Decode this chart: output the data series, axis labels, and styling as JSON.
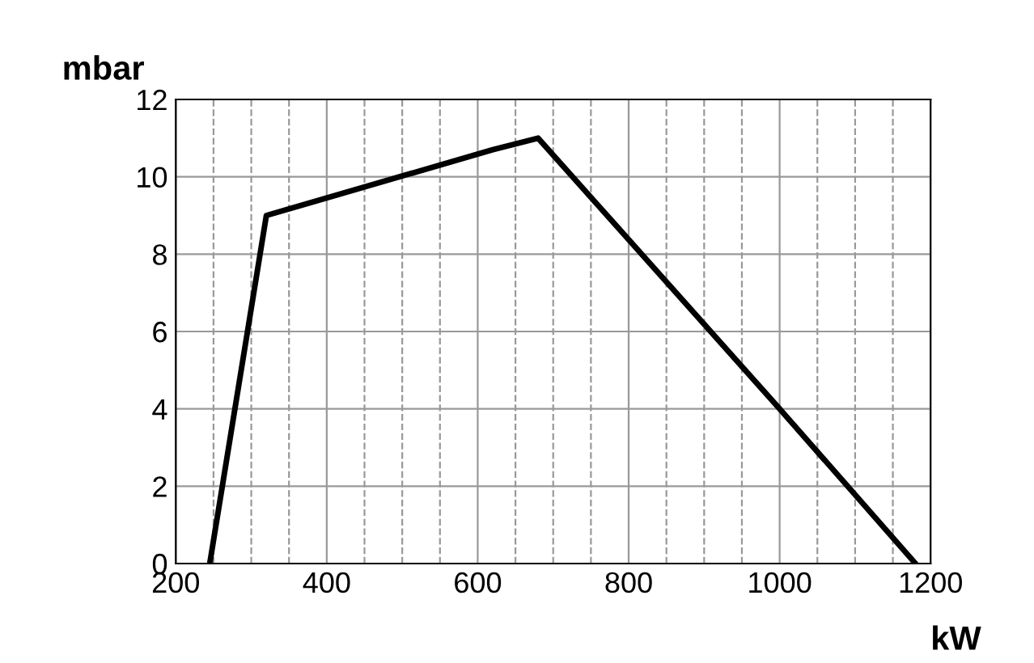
{
  "chart_data": {
    "type": "line",
    "ylabel": "mbar",
    "xlabel": "kW",
    "x": [
      245,
      320,
      620,
      680,
      1000,
      1180
    ],
    "series": [
      {
        "color": "#000000",
        "values": [
          0,
          9,
          10.7,
          11,
          4,
          0
        ]
      }
    ],
    "xlim": [
      200,
      1200
    ],
    "ylim": [
      0,
      12
    ],
    "xticks": [
      200,
      {
        "value": 250,
        "label": null
      },
      {
        "value": 300,
        "label": null
      },
      {
        "value": 350,
        "label": null
      },
      400,
      {
        "value": 450,
        "label": null
      },
      {
        "value": 500,
        "label": null
      },
      {
        "value": 550,
        "label": null
      },
      600,
      {
        "value": 650,
        "label": null
      },
      {
        "value": 700,
        "label": null
      },
      {
        "value": 750,
        "label": null
      },
      800,
      {
        "value": 850,
        "label": null
      },
      {
        "value": 900,
        "label": null
      },
      {
        "value": 950,
        "label": null
      },
      1000,
      {
        "value": 1050,
        "label": null
      },
      {
        "value": 1100,
        "label": null
      },
      {
        "value": 1150,
        "label": null
      },
      1200
    ],
    "yticks": [
      0,
      2,
      4,
      6,
      8,
      10,
      12
    ],
    "grid": true,
    "marker": "none",
    "line_style": "solid"
  }
}
